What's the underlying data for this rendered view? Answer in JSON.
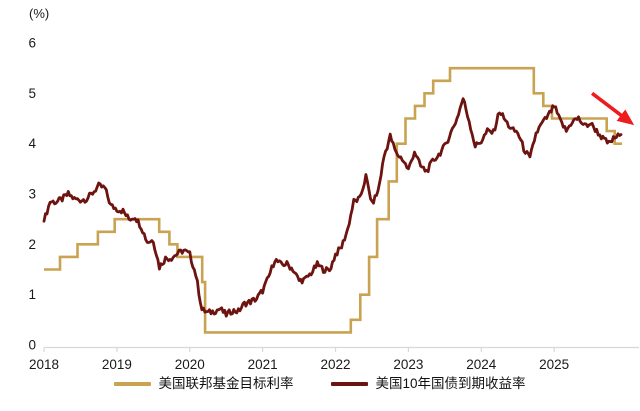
{
  "chart_data": {
    "type": "line",
    "title": "",
    "ylabel": "(%)",
    "xlabel": "",
    "grid": false,
    "legend_position": "bottom-center",
    "xlim": [
      2018,
      2026.15
    ],
    "ylim": [
      0,
      6
    ],
    "y_ticks": [
      "0",
      "1",
      "2",
      "3",
      "4",
      "5",
      "6"
    ],
    "x_ticks": [
      "2018",
      "2019",
      "2020",
      "2021",
      "2022",
      "2023",
      "2024",
      "2025"
    ],
    "noise_amplitude": 0.06,
    "series": [
      {
        "name": "美国联邦基金目标利率",
        "type": "step",
        "color": "#C9A351",
        "points": [
          [
            2018.0,
            1.5
          ],
          [
            2018.22,
            1.75
          ],
          [
            2018.46,
            2.0
          ],
          [
            2018.74,
            2.25
          ],
          [
            2018.97,
            2.5
          ],
          [
            2019.58,
            2.25
          ],
          [
            2019.72,
            2.0
          ],
          [
            2019.83,
            1.75
          ],
          [
            2020.17,
            1.25
          ],
          [
            2020.21,
            0.25
          ],
          [
            2022.21,
            0.5
          ],
          [
            2022.34,
            1.0
          ],
          [
            2022.46,
            1.75
          ],
          [
            2022.57,
            2.5
          ],
          [
            2022.73,
            3.25
          ],
          [
            2022.84,
            4.0
          ],
          [
            2022.96,
            4.5
          ],
          [
            2023.09,
            4.75
          ],
          [
            2023.22,
            5.0
          ],
          [
            2023.34,
            5.25
          ],
          [
            2023.57,
            5.5
          ],
          [
            2024.72,
            5.0
          ],
          [
            2024.85,
            4.75
          ],
          [
            2024.97,
            4.5
          ],
          [
            2025.72,
            4.25
          ],
          [
            2025.83,
            4.0
          ],
          [
            2025.93,
            4.0
          ]
        ]
      },
      {
        "name": "美国10年国债到期收益率",
        "type": "line",
        "color": "#6D1310",
        "x_start": 2018.0,
        "x_step": 0.083333,
        "values": [
          2.46,
          2.85,
          2.84,
          2.9,
          3.0,
          2.9,
          2.88,
          2.9,
          3.02,
          3.16,
          3.12,
          2.77,
          2.7,
          2.66,
          2.5,
          2.55,
          2.35,
          2.05,
          2.08,
          1.55,
          1.72,
          1.73,
          1.82,
          1.88,
          1.8,
          1.4,
          0.7,
          0.64,
          0.67,
          0.72,
          0.6,
          0.68,
          0.67,
          0.82,
          0.86,
          0.92,
          1.08,
          1.35,
          1.7,
          1.6,
          1.61,
          1.5,
          1.28,
          1.3,
          1.43,
          1.6,
          1.5,
          1.48,
          1.8,
          1.95,
          2.3,
          2.85,
          2.9,
          3.35,
          2.8,
          3.05,
          3.75,
          4.15,
          3.8,
          3.7,
          3.48,
          3.85,
          3.55,
          3.45,
          3.65,
          3.78,
          3.95,
          4.22,
          4.5,
          4.9,
          4.45,
          3.95,
          4.05,
          4.25,
          4.22,
          4.65,
          4.45,
          4.28,
          4.22,
          3.9,
          3.7,
          4.2,
          4.4,
          4.55,
          4.75,
          4.45,
          4.25,
          4.45,
          4.5,
          4.35,
          4.4,
          4.25,
          4.1,
          4.0,
          4.12,
          4.18
        ]
      }
    ],
    "annotation_arrow": {
      "from": [
        2025.52,
        5.0
      ],
      "to": [
        2026.05,
        4.42
      ],
      "color": "#EE1C1C"
    }
  },
  "axis": {
    "line_color": "#D8D8D8",
    "text_color": "#1a1a1a"
  }
}
